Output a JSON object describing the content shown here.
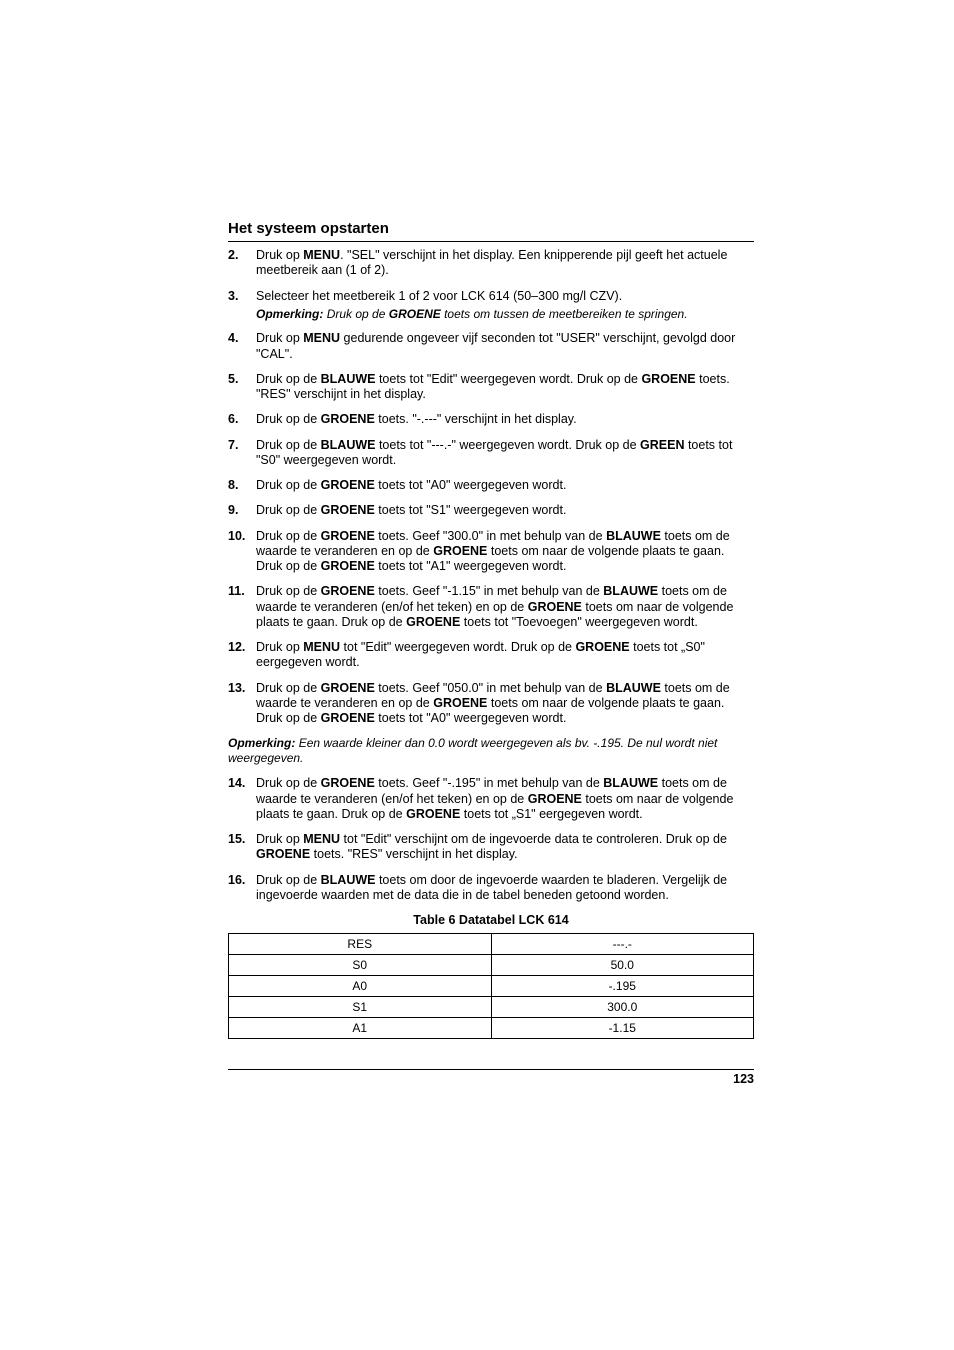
{
  "section_title": "Het systeem opstarten",
  "steps": [
    {
      "num": "2.",
      "html": "Druk op <b>MENU</b>. \"SEL\" verschijnt in het display. Een knipperende pijl geeft het actuele meetbereik aan (1 of 2)."
    },
    {
      "num": "3.",
      "html": "Selecteer het meetbereik 1 of 2 voor LCK 614 (50–300 mg/l CZV).",
      "note_html": "<b><i>Opmerking:</i></b> <i>Druk op de</i> <b><i>GROENE</i></b> <i>toets om tussen de meetbereiken te springen.</i>"
    },
    {
      "num": "4.",
      "html": "Druk op <b>MENU</b> gedurende ongeveer vijf seconden tot \"USER\" verschijnt, gevolgd door \"CAL\"."
    },
    {
      "num": "5.",
      "html": "Druk op de <b>BLAUWE</b> toets tot \"Edit\" weergegeven wordt. Druk op de <b>GROENE</b> toets. \"RES\" verschijnt in het display."
    },
    {
      "num": "6.",
      "html": "Druk op de <b>GROENE</b> toets. \"-.---\" verschijnt in het display."
    },
    {
      "num": "7.",
      "html": "Druk op de <b>BLAUWE</b> toets tot \"---.-\" weergegeven wordt. Druk op de <b>GREEN</b> toets tot \"S0\" weergegeven wordt."
    },
    {
      "num": "8.",
      "html": "Druk op de <b>GROENE</b> toets tot \"A0\" weergegeven wordt."
    },
    {
      "num": "9.",
      "html": "Druk op de <b>GROENE</b> toets tot \"S1\" weergegeven wordt."
    },
    {
      "num": "10.",
      "html": "Druk op de <b>GROENE</b> toets. Geef \"300.0\" in met behulp van de <b>BLAUWE</b> toets om de waarde te veranderen en op de <b>GROENE</b> toets om naar de volgende plaats te gaan. Druk op de <b>GROENE</b> toets tot \"A1\" weergegeven wordt."
    },
    {
      "num": "11.",
      "html": "Druk op de <b>GROENE</b> toets. Geef \"-1.15\" in met behulp van de <b>BLAUWE</b> toets om de waarde te veranderen (en/of het teken) en op de <b>GROENE</b> toets om naar de volgende plaats te gaan. Druk op de <b>GROENE</b> toets tot \"Toevoegen\" weergegeven wordt."
    },
    {
      "num": "12.",
      "html": "Druk op <b>MENU</b> tot \"Edit\" weergegeven wordt. Druk op de <b>GROENE</b> toets tot „S0\" eergegeven wordt."
    },
    {
      "num": "13.",
      "html": "Druk op de <b>GROENE</b> toets. Geef \"050.0\" in met behulp van de <b>BLAUWE</b> toets om de waarde te veranderen en op de <b>GROENE</b> toets om naar de volgende plaats te gaan. Druk op de <b>GROENE</b> toets tot \"A0\" weergegeven wordt."
    }
  ],
  "mid_note_html": "<b><i>Opmerking:</i></b> <i>Een waarde kleiner dan 0.0 wordt weergegeven als bv. -.195. De nul wordt niet weergegeven.</i>",
  "steps2": [
    {
      "num": "14.",
      "html": "Druk op de <b>GROENE</b> toets. Geef \"-.195\" in met behulp van de <b>BLAUWE</b> toets om de waarde te veranderen (en/of het teken) en op de <b>GROENE</b> toets om naar de volgende plaats te gaan. Druk op de <b>GROENE</b> toets tot „S1\" eergegeven wordt."
    },
    {
      "num": "15.",
      "html": "Druk op <b>MENU</b> tot \"Edit\" verschijnt om de ingevoerde data te controleren. Druk op de <b>GROENE</b> toets. \"RES\" verschijnt in het display."
    },
    {
      "num": "16.",
      "html": "Druk op de <b>BLAUWE</b> toets om door de ingevoerde waarden te bladeren. Vergelijk de ingevoerde waarden met de data die in de tabel beneden getoond worden."
    }
  ],
  "table": {
    "caption": "Table 6 Datatabel LCK 614",
    "rows": [
      [
        "RES",
        "---.-"
      ],
      [
        "S0",
        "50.0"
      ],
      [
        "A0",
        "-.195"
      ],
      [
        "S1",
        "300.0"
      ],
      [
        "A1",
        "-1.15"
      ]
    ]
  },
  "page_number": "123"
}
